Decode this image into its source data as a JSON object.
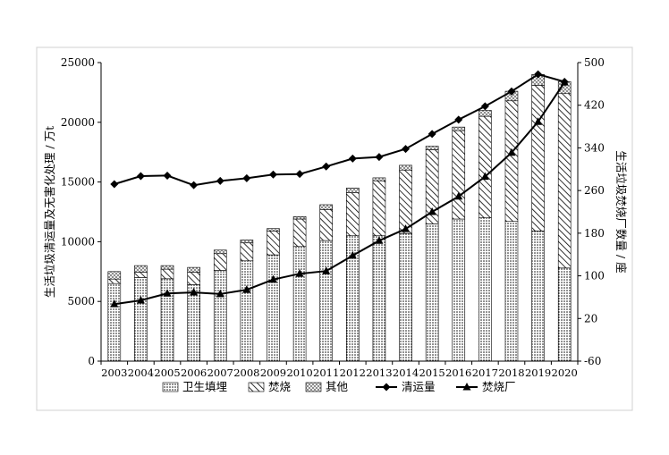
{
  "chart_data": {
    "type": "bar",
    "title": "",
    "ylabel": "生活垃圾清运量及无害化处理 / 万t",
    "y2label": "生活垃圾焚烧厂数量 / 座",
    "ylim": [
      0,
      25000
    ],
    "y2lim": [
      -60,
      500
    ],
    "yticks": [
      "0",
      "5000",
      "10000",
      "15000",
      "20000",
      "25000"
    ],
    "y2ticks": [
      "-60",
      "20",
      "100",
      "180",
      "260",
      "340",
      "420",
      "500"
    ],
    "grid": false,
    "legend_position": "bottom",
    "categories": [
      "2003",
      "2004",
      "2005",
      "2006",
      "2007",
      "2008",
      "2009",
      "2010",
      "2011",
      "2012",
      "2013",
      "2014",
      "2015",
      "2016",
      "2017",
      "2018",
      "2019",
      "2020"
    ],
    "bar_series": [
      {
        "name": "卫生填埋",
        "pattern": "dots",
        "values": [
          6500,
          7000,
          6900,
          6400,
          7600,
          8400,
          8900,
          9600,
          10100,
          10500,
          10500,
          10700,
          11500,
          11900,
          12000,
          11700,
          10900,
          7800
        ]
      },
      {
        "name": "焚烧",
        "pattern": "hatch",
        "values": [
          370,
          450,
          800,
          1050,
          1400,
          1500,
          2000,
          2300,
          2600,
          3600,
          4600,
          5300,
          6200,
          7400,
          8500,
          10100,
          12200,
          14600
        ]
      },
      {
        "name": "其他",
        "pattern": "crosshatch",
        "values": [
          630,
          550,
          300,
          400,
          300,
          250,
          200,
          200,
          400,
          400,
          250,
          400,
          300,
          300,
          500,
          800,
          900,
          1000
        ]
      }
    ],
    "line_series": [
      {
        "name": "清运量",
        "marker": "diamond",
        "axis": "right",
        "values": [
          272,
          287,
          288,
          270,
          278,
          283,
          290,
          291,
          305,
          320,
          323,
          338,
          366,
          393,
          418,
          446,
          478,
          464
        ]
      },
      {
        "name": "焚烧厂",
        "marker": "triangle",
        "axis": "right",
        "values": [
          47,
          54,
          67,
          69,
          66,
          74,
          93,
          104,
          109,
          138,
          166,
          188,
          220,
          249,
          286,
          331,
          389,
          463
        ]
      }
    ]
  }
}
